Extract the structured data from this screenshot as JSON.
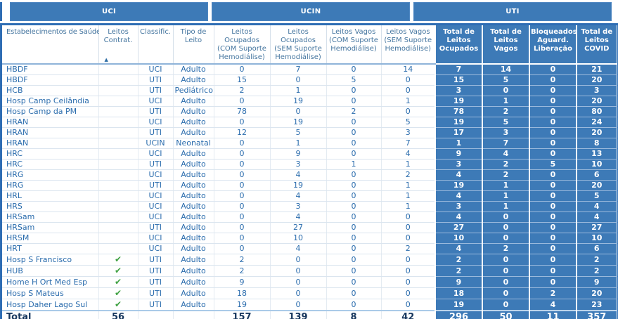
{
  "tabs": [
    {
      "label": "UCI"
    },
    {
      "label": "UCIN"
    },
    {
      "label": "UTI"
    }
  ],
  "icons": {
    "check": "✔",
    "sort_ascending": "▲"
  },
  "colors": {
    "accent_blue": "#3d7ab7",
    "border_blue": "#2e6db4",
    "body_text_blue": "#2a6cad",
    "header_text_blue": "#44759f",
    "check_green": "#3fa142",
    "total_text_navy": "#17375e"
  },
  "table": {
    "columns": [
      {
        "label": "Estabelecimentos de Saúde",
        "first": true,
        "sorted": false,
        "blue": false
      },
      {
        "label": "Leitos Contrat.",
        "first": false,
        "sorted": true,
        "blue": false
      },
      {
        "label": "Classific.",
        "first": false,
        "sorted": false,
        "blue": false
      },
      {
        "label": "Tipo de Leito",
        "first": false,
        "sorted": false,
        "blue": false
      },
      {
        "label": "Leitos Ocupados (COM Suporte Hemodiálise)",
        "first": false,
        "sorted": false,
        "blue": false
      },
      {
        "label": "Leitos Ocupados (SEM Suporte Hemodiálise)",
        "first": false,
        "sorted": false,
        "blue": false
      },
      {
        "label": "Leitos Vagos (COM Suporte Hemodiálise)",
        "first": false,
        "sorted": false,
        "blue": false
      },
      {
        "label": "Leitos Vagos (SEM Suporte Hemodiálise)",
        "first": false,
        "sorted": false,
        "blue": false
      },
      {
        "label": "Total de Leitos Ocupados",
        "first": false,
        "sorted": false,
        "blue": true
      },
      {
        "label": "Total de Leitos Vagos",
        "first": false,
        "sorted": false,
        "blue": true
      },
      {
        "label": "Bloqueados/ Aguard. Liberação",
        "first": false,
        "sorted": false,
        "blue": true
      },
      {
        "label": "Total de Leitos COVID",
        "first": false,
        "sorted": false,
        "blue": true
      }
    ],
    "rows": [
      {
        "est": "HBDF",
        "check": false,
        "cls": "UCI",
        "tipo": "Adulto",
        "oc_com": "0",
        "oc_sem": "7",
        "vg_com": "0",
        "vg_sem": "14",
        "tot_oc": "7",
        "tot_vg": "14",
        "bloq": "0",
        "covid": "21"
      },
      {
        "est": "HBDF",
        "check": false,
        "cls": "UTI",
        "tipo": "Adulto",
        "oc_com": "15",
        "oc_sem": "0",
        "vg_com": "5",
        "vg_sem": "0",
        "tot_oc": "15",
        "tot_vg": "5",
        "bloq": "0",
        "covid": "20"
      },
      {
        "est": "HCB",
        "check": false,
        "cls": "UTI",
        "tipo": "Pediátrico",
        "oc_com": "2",
        "oc_sem": "1",
        "vg_com": "0",
        "vg_sem": "0",
        "tot_oc": "3",
        "tot_vg": "0",
        "bloq": "0",
        "covid": "3"
      },
      {
        "est": "Hosp Camp Ceilândia",
        "check": false,
        "cls": "UCI",
        "tipo": "Adulto",
        "oc_com": "0",
        "oc_sem": "19",
        "vg_com": "0",
        "vg_sem": "1",
        "tot_oc": "19",
        "tot_vg": "1",
        "bloq": "0",
        "covid": "20"
      },
      {
        "est": "Hosp Camp da PM",
        "check": false,
        "cls": "UTI",
        "tipo": "Adulto",
        "oc_com": "78",
        "oc_sem": "0",
        "vg_com": "2",
        "vg_sem": "0",
        "tot_oc": "78",
        "tot_vg": "2",
        "bloq": "0",
        "covid": "80"
      },
      {
        "est": "HRAN",
        "check": false,
        "cls": "UCI",
        "tipo": "Adulto",
        "oc_com": "0",
        "oc_sem": "19",
        "vg_com": "0",
        "vg_sem": "5",
        "tot_oc": "19",
        "tot_vg": "5",
        "bloq": "0",
        "covid": "24"
      },
      {
        "est": "HRAN",
        "check": false,
        "cls": "UTI",
        "tipo": "Adulto",
        "oc_com": "12",
        "oc_sem": "5",
        "vg_com": "0",
        "vg_sem": "3",
        "tot_oc": "17",
        "tot_vg": "3",
        "bloq": "0",
        "covid": "20"
      },
      {
        "est": "HRAN",
        "check": false,
        "cls": "UCIN",
        "tipo": "Neonatal",
        "oc_com": "0",
        "oc_sem": "1",
        "vg_com": "0",
        "vg_sem": "7",
        "tot_oc": "1",
        "tot_vg": "7",
        "bloq": "0",
        "covid": "8"
      },
      {
        "est": "HRC",
        "check": false,
        "cls": "UCI",
        "tipo": "Adulto",
        "oc_com": "0",
        "oc_sem": "9",
        "vg_com": "0",
        "vg_sem": "4",
        "tot_oc": "9",
        "tot_vg": "4",
        "bloq": "0",
        "covid": "13"
      },
      {
        "est": "HRC",
        "check": false,
        "cls": "UTI",
        "tipo": "Adulto",
        "oc_com": "0",
        "oc_sem": "3",
        "vg_com": "1",
        "vg_sem": "1",
        "tot_oc": "3",
        "tot_vg": "2",
        "bloq": "5",
        "covid": "10"
      },
      {
        "est": "HRG",
        "check": false,
        "cls": "UCI",
        "tipo": "Adulto",
        "oc_com": "0",
        "oc_sem": "4",
        "vg_com": "0",
        "vg_sem": "2",
        "tot_oc": "4",
        "tot_vg": "2",
        "bloq": "0",
        "covid": "6"
      },
      {
        "est": "HRG",
        "check": false,
        "cls": "UTI",
        "tipo": "Adulto",
        "oc_com": "0",
        "oc_sem": "19",
        "vg_com": "0",
        "vg_sem": "1",
        "tot_oc": "19",
        "tot_vg": "1",
        "bloq": "0",
        "covid": "20"
      },
      {
        "est": "HRL",
        "check": false,
        "cls": "UCI",
        "tipo": "Adulto",
        "oc_com": "0",
        "oc_sem": "4",
        "vg_com": "0",
        "vg_sem": "1",
        "tot_oc": "4",
        "tot_vg": "1",
        "bloq": "0",
        "covid": "5"
      },
      {
        "est": "HRS",
        "check": false,
        "cls": "UCI",
        "tipo": "Adulto",
        "oc_com": "0",
        "oc_sem": "3",
        "vg_com": "0",
        "vg_sem": "1",
        "tot_oc": "3",
        "tot_vg": "1",
        "bloq": "0",
        "covid": "4"
      },
      {
        "est": "HRSam",
        "check": false,
        "cls": "UCI",
        "tipo": "Adulto",
        "oc_com": "0",
        "oc_sem": "4",
        "vg_com": "0",
        "vg_sem": "0",
        "tot_oc": "4",
        "tot_vg": "0",
        "bloq": "0",
        "covid": "4"
      },
      {
        "est": "HRSam",
        "check": false,
        "cls": "UTI",
        "tipo": "Adulto",
        "oc_com": "0",
        "oc_sem": "27",
        "vg_com": "0",
        "vg_sem": "0",
        "tot_oc": "27",
        "tot_vg": "0",
        "bloq": "0",
        "covid": "27"
      },
      {
        "est": "HRSM",
        "check": false,
        "cls": "UCI",
        "tipo": "Adulto",
        "oc_com": "0",
        "oc_sem": "10",
        "vg_com": "0",
        "vg_sem": "0",
        "tot_oc": "10",
        "tot_vg": "0",
        "bloq": "0",
        "covid": "10"
      },
      {
        "est": "HRT",
        "check": false,
        "cls": "UCI",
        "tipo": "Adulto",
        "oc_com": "0",
        "oc_sem": "4",
        "vg_com": "0",
        "vg_sem": "2",
        "tot_oc": "4",
        "tot_vg": "2",
        "bloq": "0",
        "covid": "6"
      },
      {
        "est": "Hosp S Francisco",
        "check": true,
        "cls": "UTI",
        "tipo": "Adulto",
        "oc_com": "2",
        "oc_sem": "0",
        "vg_com": "0",
        "vg_sem": "0",
        "tot_oc": "2",
        "tot_vg": "0",
        "bloq": "0",
        "covid": "2"
      },
      {
        "est": "HUB",
        "check": true,
        "cls": "UTI",
        "tipo": "Adulto",
        "oc_com": "2",
        "oc_sem": "0",
        "vg_com": "0",
        "vg_sem": "0",
        "tot_oc": "2",
        "tot_vg": "0",
        "bloq": "0",
        "covid": "2"
      },
      {
        "est": "Home H Ort Med Esp",
        "check": true,
        "cls": "UTI",
        "tipo": "Adulto",
        "oc_com": "9",
        "oc_sem": "0",
        "vg_com": "0",
        "vg_sem": "0",
        "tot_oc": "9",
        "tot_vg": "0",
        "bloq": "0",
        "covid": "9"
      },
      {
        "est": "Hosp S Mateus",
        "check": true,
        "cls": "UTI",
        "tipo": "Adulto",
        "oc_com": "18",
        "oc_sem": "0",
        "vg_com": "0",
        "vg_sem": "0",
        "tot_oc": "18",
        "tot_vg": "0",
        "bloq": "2",
        "covid": "20"
      },
      {
        "est": "Hosp Daher Lago Sul",
        "check": true,
        "cls": "UTI",
        "tipo": "Adulto",
        "oc_com": "19",
        "oc_sem": "0",
        "vg_com": "0",
        "vg_sem": "0",
        "tot_oc": "19",
        "tot_vg": "0",
        "bloq": "4",
        "covid": "23"
      }
    ],
    "total_row": {
      "est": "Total",
      "leitos_contrat": "56",
      "cls": "",
      "tipo": "",
      "oc_com": "157",
      "oc_sem": "139",
      "vg_com": "8",
      "vg_sem": "42",
      "tot_oc": "296",
      "tot_vg": "50",
      "bloq": "11",
      "covid": "357"
    }
  }
}
